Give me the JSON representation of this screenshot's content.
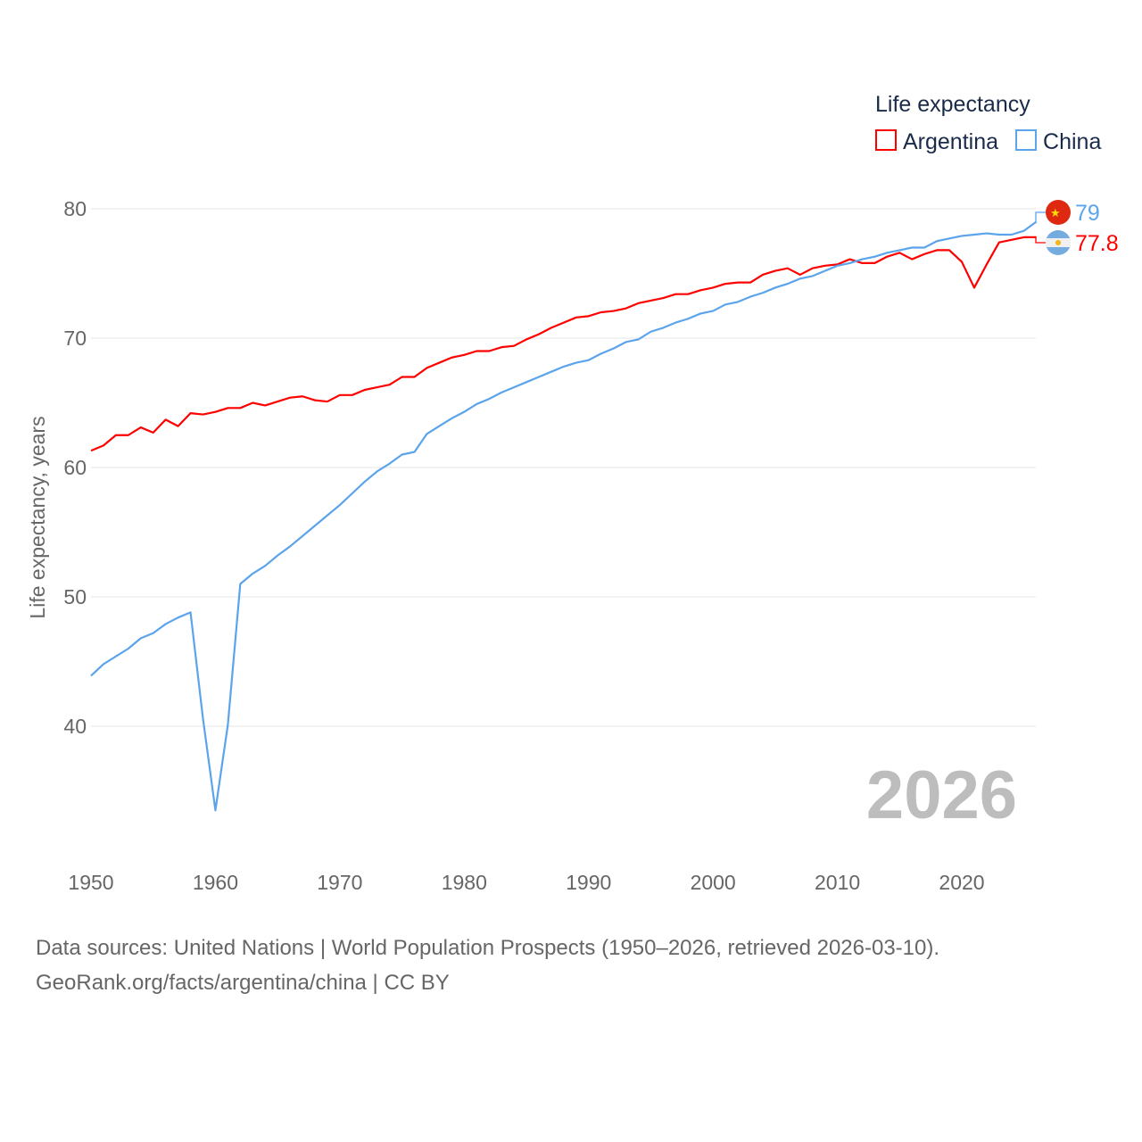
{
  "chart_data": {
    "type": "line",
    "title": "Life expectancy",
    "ylabel": "Life expectancy, years",
    "xlabel": "",
    "xlim": [
      1950,
      2026
    ],
    "ylim": [
      40,
      80
    ],
    "grid": true,
    "legend_position": "top-right",
    "x_ticks": [
      "1950",
      "1960",
      "1970",
      "1980",
      "1990",
      "2000",
      "2010",
      "2020"
    ],
    "y_ticks": [
      "40",
      "50",
      "60",
      "70",
      "80"
    ],
    "year_watermark": "2026",
    "series": [
      {
        "name": "Argentina",
        "color": "#ff0000",
        "end_label": "77.8",
        "flag": "argentina-flag",
        "values": [
          61.3,
          61.7,
          62.5,
          62.5,
          63.1,
          62.7,
          63.7,
          63.2,
          64.2,
          64.1,
          64.3,
          64.6,
          64.6,
          65.0,
          64.8,
          65.1,
          65.4,
          65.5,
          65.2,
          65.1,
          65.6,
          65.6,
          66.0,
          66.2,
          66.4,
          67.0,
          67.0,
          67.7,
          68.1,
          68.5,
          68.7,
          69.0,
          69.0,
          69.3,
          69.4,
          69.9,
          70.3,
          70.8,
          71.2,
          71.6,
          71.7,
          72.0,
          72.1,
          72.3,
          72.7,
          72.9,
          73.1,
          73.4,
          73.4,
          73.7,
          73.9,
          74.2,
          74.3,
          74.3,
          74.9,
          75.2,
          75.4,
          74.9,
          75.4,
          75.6,
          75.7,
          76.1,
          75.8,
          75.8,
          76.3,
          76.6,
          76.1,
          76.5,
          76.8,
          76.8,
          75.9,
          73.9,
          75.7,
          77.4,
          77.6,
          77.8,
          77.8
        ]
      },
      {
        "name": "China",
        "color": "#5ba4ec",
        "end_label": "79",
        "flag": "china-flag",
        "values": [
          43.9,
          44.8,
          45.4,
          46.0,
          46.8,
          47.2,
          47.9,
          48.4,
          48.8,
          40.6,
          33.5,
          40.1,
          51.0,
          51.8,
          52.4,
          53.2,
          53.9,
          54.7,
          55.5,
          56.3,
          57.1,
          58.0,
          58.9,
          59.7,
          60.3,
          61.0,
          61.2,
          62.6,
          63.2,
          63.8,
          64.3,
          64.9,
          65.3,
          65.8,
          66.2,
          66.6,
          67.0,
          67.4,
          67.8,
          68.1,
          68.3,
          68.8,
          69.2,
          69.7,
          69.9,
          70.5,
          70.8,
          71.2,
          71.5,
          71.9,
          72.1,
          72.6,
          72.8,
          73.2,
          73.5,
          73.9,
          74.2,
          74.6,
          74.8,
          75.2,
          75.6,
          75.8,
          76.1,
          76.3,
          76.6,
          76.8,
          77.0,
          77.0,
          77.5,
          77.7,
          77.9,
          78.0,
          78.1,
          78.0,
          78.0,
          78.3,
          79.0
        ]
      }
    ]
  },
  "footer": {
    "line1": "Data sources: United Nations | World Population Prospects (1950–2026, retrieved 2026-03-10).",
    "line2": "GeoRank.org/facts/argentina/china | CC BY"
  }
}
